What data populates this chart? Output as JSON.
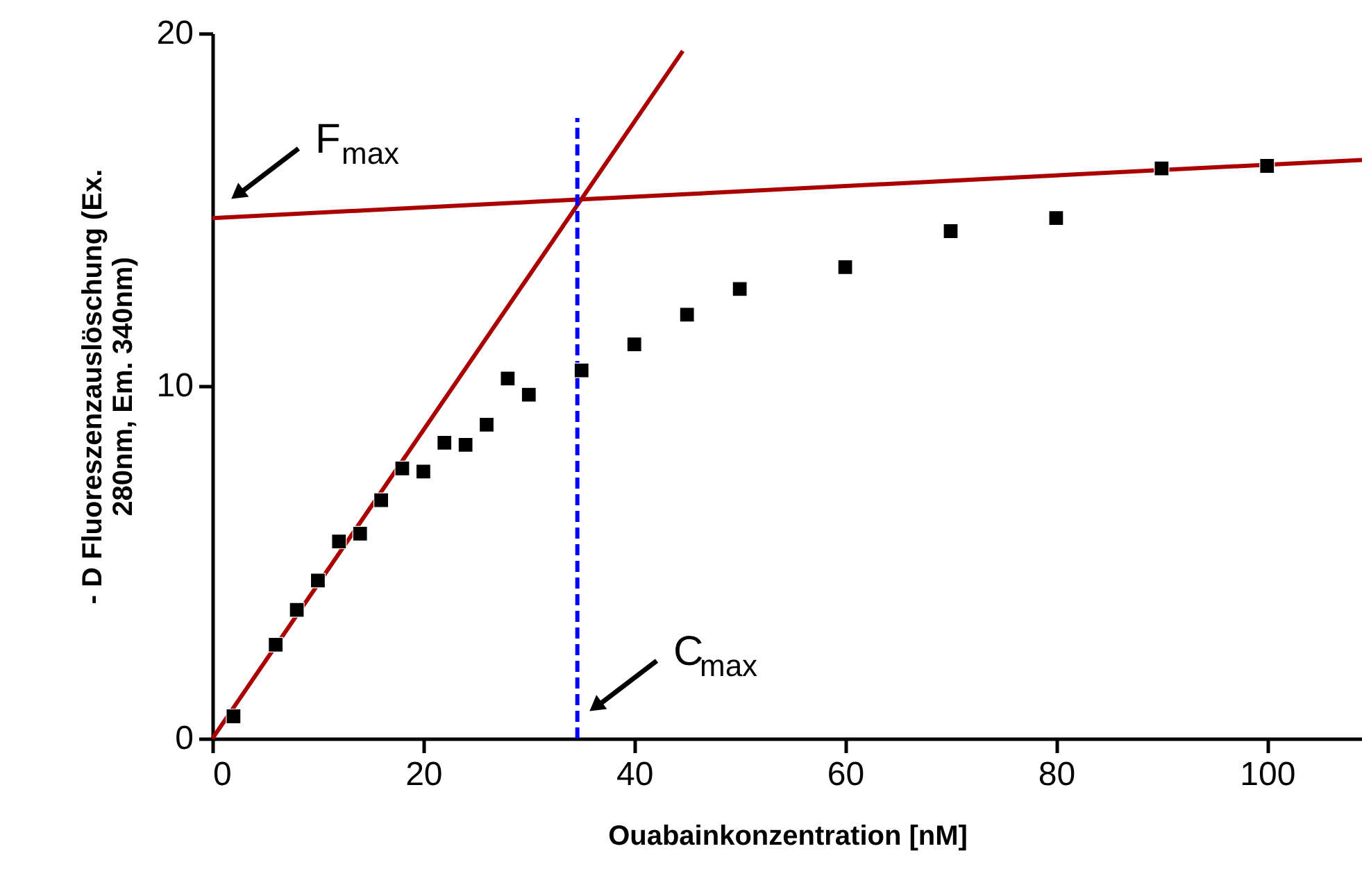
{
  "chart_data": {
    "type": "scatter",
    "xlabel": "Ouabainkonzentration [nM]",
    "ylabel": "- D Fluoreszenzauslöschung (Ex. 280nm, Em. 340nm)",
    "xlim": [
      0,
      109
    ],
    "xticks": [
      0,
      20,
      40,
      60,
      80,
      100
    ],
    "ylim": [
      0,
      20
    ],
    "yticks": [
      0,
      10,
      20
    ],
    "grid": false,
    "series": [
      {
        "color": "#000000",
        "marker": "square",
        "x": [
          2,
          6,
          8,
          10,
          12,
          14,
          16,
          18,
          20,
          22,
          24,
          26,
          28,
          30,
          35,
          40,
          45,
          50,
          60,
          70,
          80,
          90,
          100
        ],
        "values": [
          0.63,
          2.66,
          3.65,
          4.48,
          5.59,
          5.81,
          6.76,
          7.66,
          7.57,
          8.39,
          8.33,
          8.9,
          10.21,
          9.75,
          10.44,
          11.18,
          12.02,
          12.75,
          13.37,
          14.39,
          14.76,
          16.17,
          16.24
        ]
      },
      {
        "type": "line",
        "color": "#aa0000",
        "line_style": "solid",
        "x": [
          0,
          44.6
        ],
        "values": [
          0,
          19.5
        ]
      },
      {
        "type": "line",
        "color": "#aa0000",
        "line_style": "solid",
        "x": [
          0,
          109
        ],
        "values": [
          14.76,
          16.41
        ]
      },
      {
        "type": "line",
        "color": "#0000ff",
        "line_style": "dashed",
        "x": [
          34.6,
          34.6
        ],
        "values": [
          0,
          17.6
        ]
      }
    ],
    "annotations": [
      "F$_{max}$",
      "C$_{max}$"
    ]
  }
}
